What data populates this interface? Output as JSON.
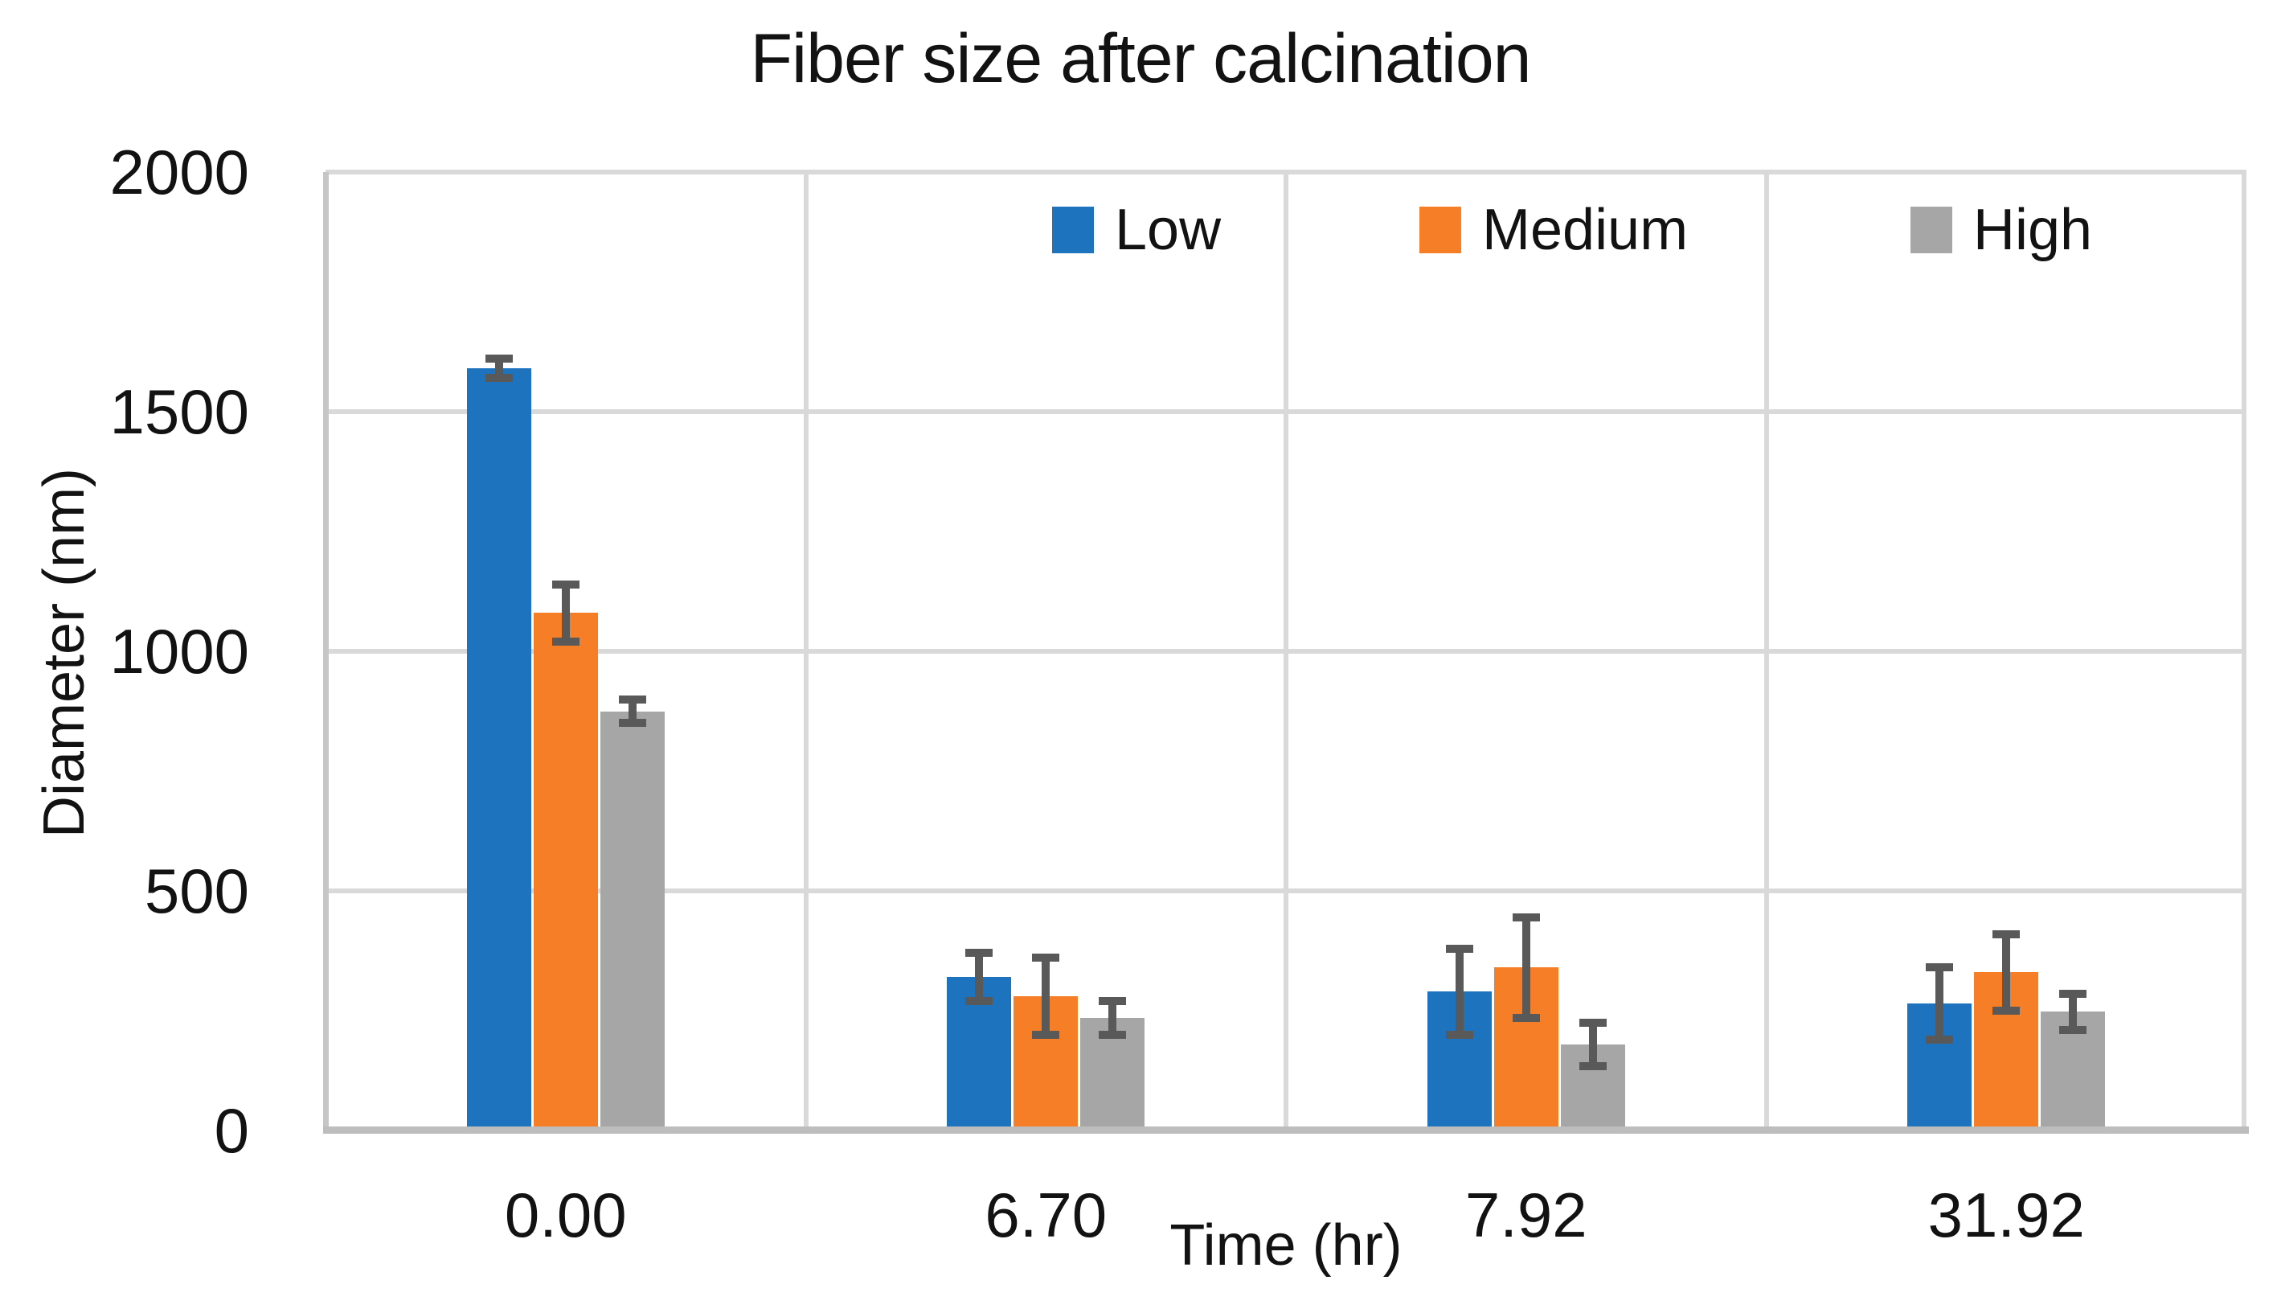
{
  "chart_data": {
    "type": "bar",
    "title": "Fiber size after calcination",
    "xlabel": "Time (hr)",
    "ylabel": "Diameter (nm)",
    "categories": [
      "0.00",
      "6.70",
      "7.92",
      "31.92"
    ],
    "series": [
      {
        "name": "Low",
        "color": "#1E73BE",
        "values": [
          1590,
          320,
          290,
          265
        ],
        "errors": [
          20,
          50,
          90,
          75
        ]
      },
      {
        "name": "Medium",
        "color": "#F57E27",
        "values": [
          1080,
          280,
          340,
          330
        ],
        "errors": [
          60,
          80,
          105,
          80
        ]
      },
      {
        "name": "High",
        "color": "#A6A6A6",
        "values": [
          875,
          235,
          180,
          248
        ],
        "errors": [
          25,
          35,
          45,
          38
        ]
      }
    ],
    "ylim": [
      0,
      2000
    ],
    "ytick_step": 500,
    "grid": true,
    "legend_position": "top-inside",
    "error_bars": true,
    "error_bar_color": "#595959",
    "gridline_color": "#D9D9D9",
    "axis_line_color": "#C0C0C0"
  }
}
